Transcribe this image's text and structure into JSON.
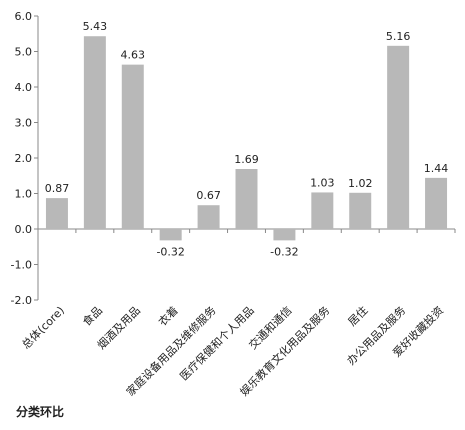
{
  "chart_data": {
    "type": "bar",
    "categories": [
      "总体(core)",
      "食品",
      "烟酒及用品",
      "衣着",
      "家庭设备用品及维修服务",
      "医疗保健和个人用品",
      "交通和通信",
      "娱乐教育文化用品及服务",
      "居住",
      "办公用品及服务",
      "爱好收藏投资"
    ],
    "values": [
      0.87,
      5.43,
      4.63,
      -0.32,
      0.67,
      1.69,
      -0.32,
      1.03,
      1.02,
      5.16,
      1.44
    ],
    "value_labels": [
      "0.87",
      "5.43",
      "4.63",
      "-0.32",
      "0.67",
      "1.69",
      "-0.32",
      "1.03",
      "1.02",
      "5.16",
      "1.44"
    ],
    "ylim": [
      -2.0,
      6.0
    ],
    "yticks": [
      "-2.0",
      "-1.0",
      "0.0",
      "1.0",
      "2.0",
      "3.0",
      "4.0",
      "5.0",
      "6.0"
    ],
    "grid": false,
    "bar_color": "#b8b8b8",
    "axis_color": "#888888"
  },
  "footer": {
    "label": "分类环比"
  }
}
